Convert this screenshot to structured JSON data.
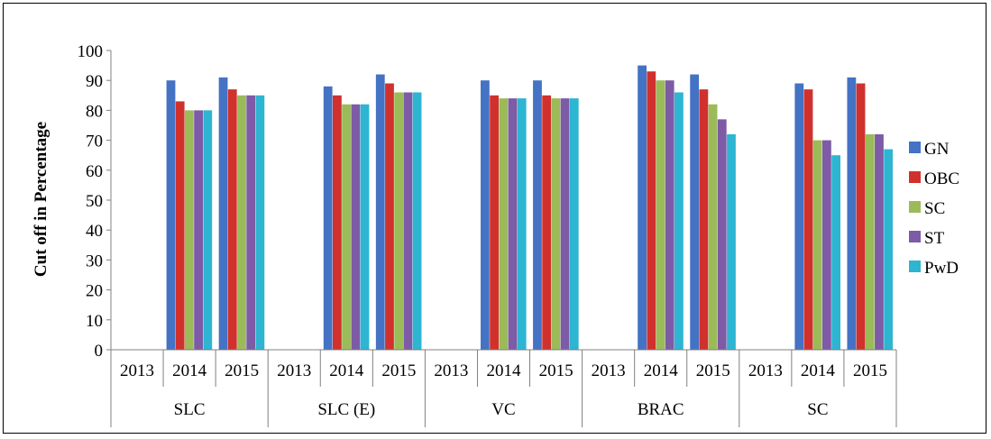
{
  "chart_data": {
    "type": "bar",
    "ylabel": "Cut off in Percentage",
    "xlabel": "",
    "ylim": [
      0,
      100
    ],
    "yticks": [
      0,
      10,
      20,
      30,
      40,
      50,
      60,
      70,
      80,
      90,
      100
    ],
    "grid": false,
    "legend_position": "right",
    "groups": [
      {
        "label": "SLC",
        "years": [
          "2013",
          "2014",
          "2015"
        ]
      },
      {
        "label": "SLC (E)",
        "years": [
          "2013",
          "2014",
          "2015"
        ]
      },
      {
        "label": "VC",
        "years": [
          "2013",
          "2014",
          "2015"
        ]
      },
      {
        "label": "BRAC",
        "years": [
          "2013",
          "2014",
          "2015"
        ]
      },
      {
        "label": "SC",
        "years": [
          "2013",
          "2014",
          "2015"
        ]
      }
    ],
    "categories": [
      "SLC 2013",
      "SLC 2014",
      "SLC 2015",
      "SLC (E) 2013",
      "SLC (E) 2014",
      "SLC (E) 2015",
      "VC 2013",
      "VC 2014",
      "VC 2015",
      "BRAC 2013",
      "BRAC 2014",
      "BRAC 2015",
      "SC 2013",
      "SC 2014",
      "SC 2015"
    ],
    "series": [
      {
        "name": "GN",
        "color": "#4472C4",
        "values": [
          null,
          90,
          91,
          null,
          88,
          92,
          null,
          90,
          90,
          null,
          95,
          92,
          null,
          89,
          91
        ]
      },
      {
        "name": "OBC",
        "color": "#D0312D",
        "values": [
          null,
          83,
          87,
          null,
          85,
          89,
          null,
          85,
          85,
          null,
          93,
          87,
          null,
          87,
          89
        ]
      },
      {
        "name": "SC",
        "color": "#9BBB59",
        "values": [
          null,
          80,
          85,
          null,
          82,
          86,
          null,
          84,
          84,
          null,
          90,
          82,
          null,
          70,
          72
        ]
      },
      {
        "name": "ST",
        "color": "#7D5BA6",
        "values": [
          null,
          80,
          85,
          null,
          82,
          86,
          null,
          84,
          84,
          null,
          90,
          77,
          null,
          70,
          72
        ]
      },
      {
        "name": "PwD",
        "color": "#2DB5D2",
        "values": [
          null,
          80,
          85,
          null,
          82,
          86,
          null,
          84,
          84,
          null,
          86,
          72,
          null,
          65,
          67
        ]
      }
    ]
  }
}
